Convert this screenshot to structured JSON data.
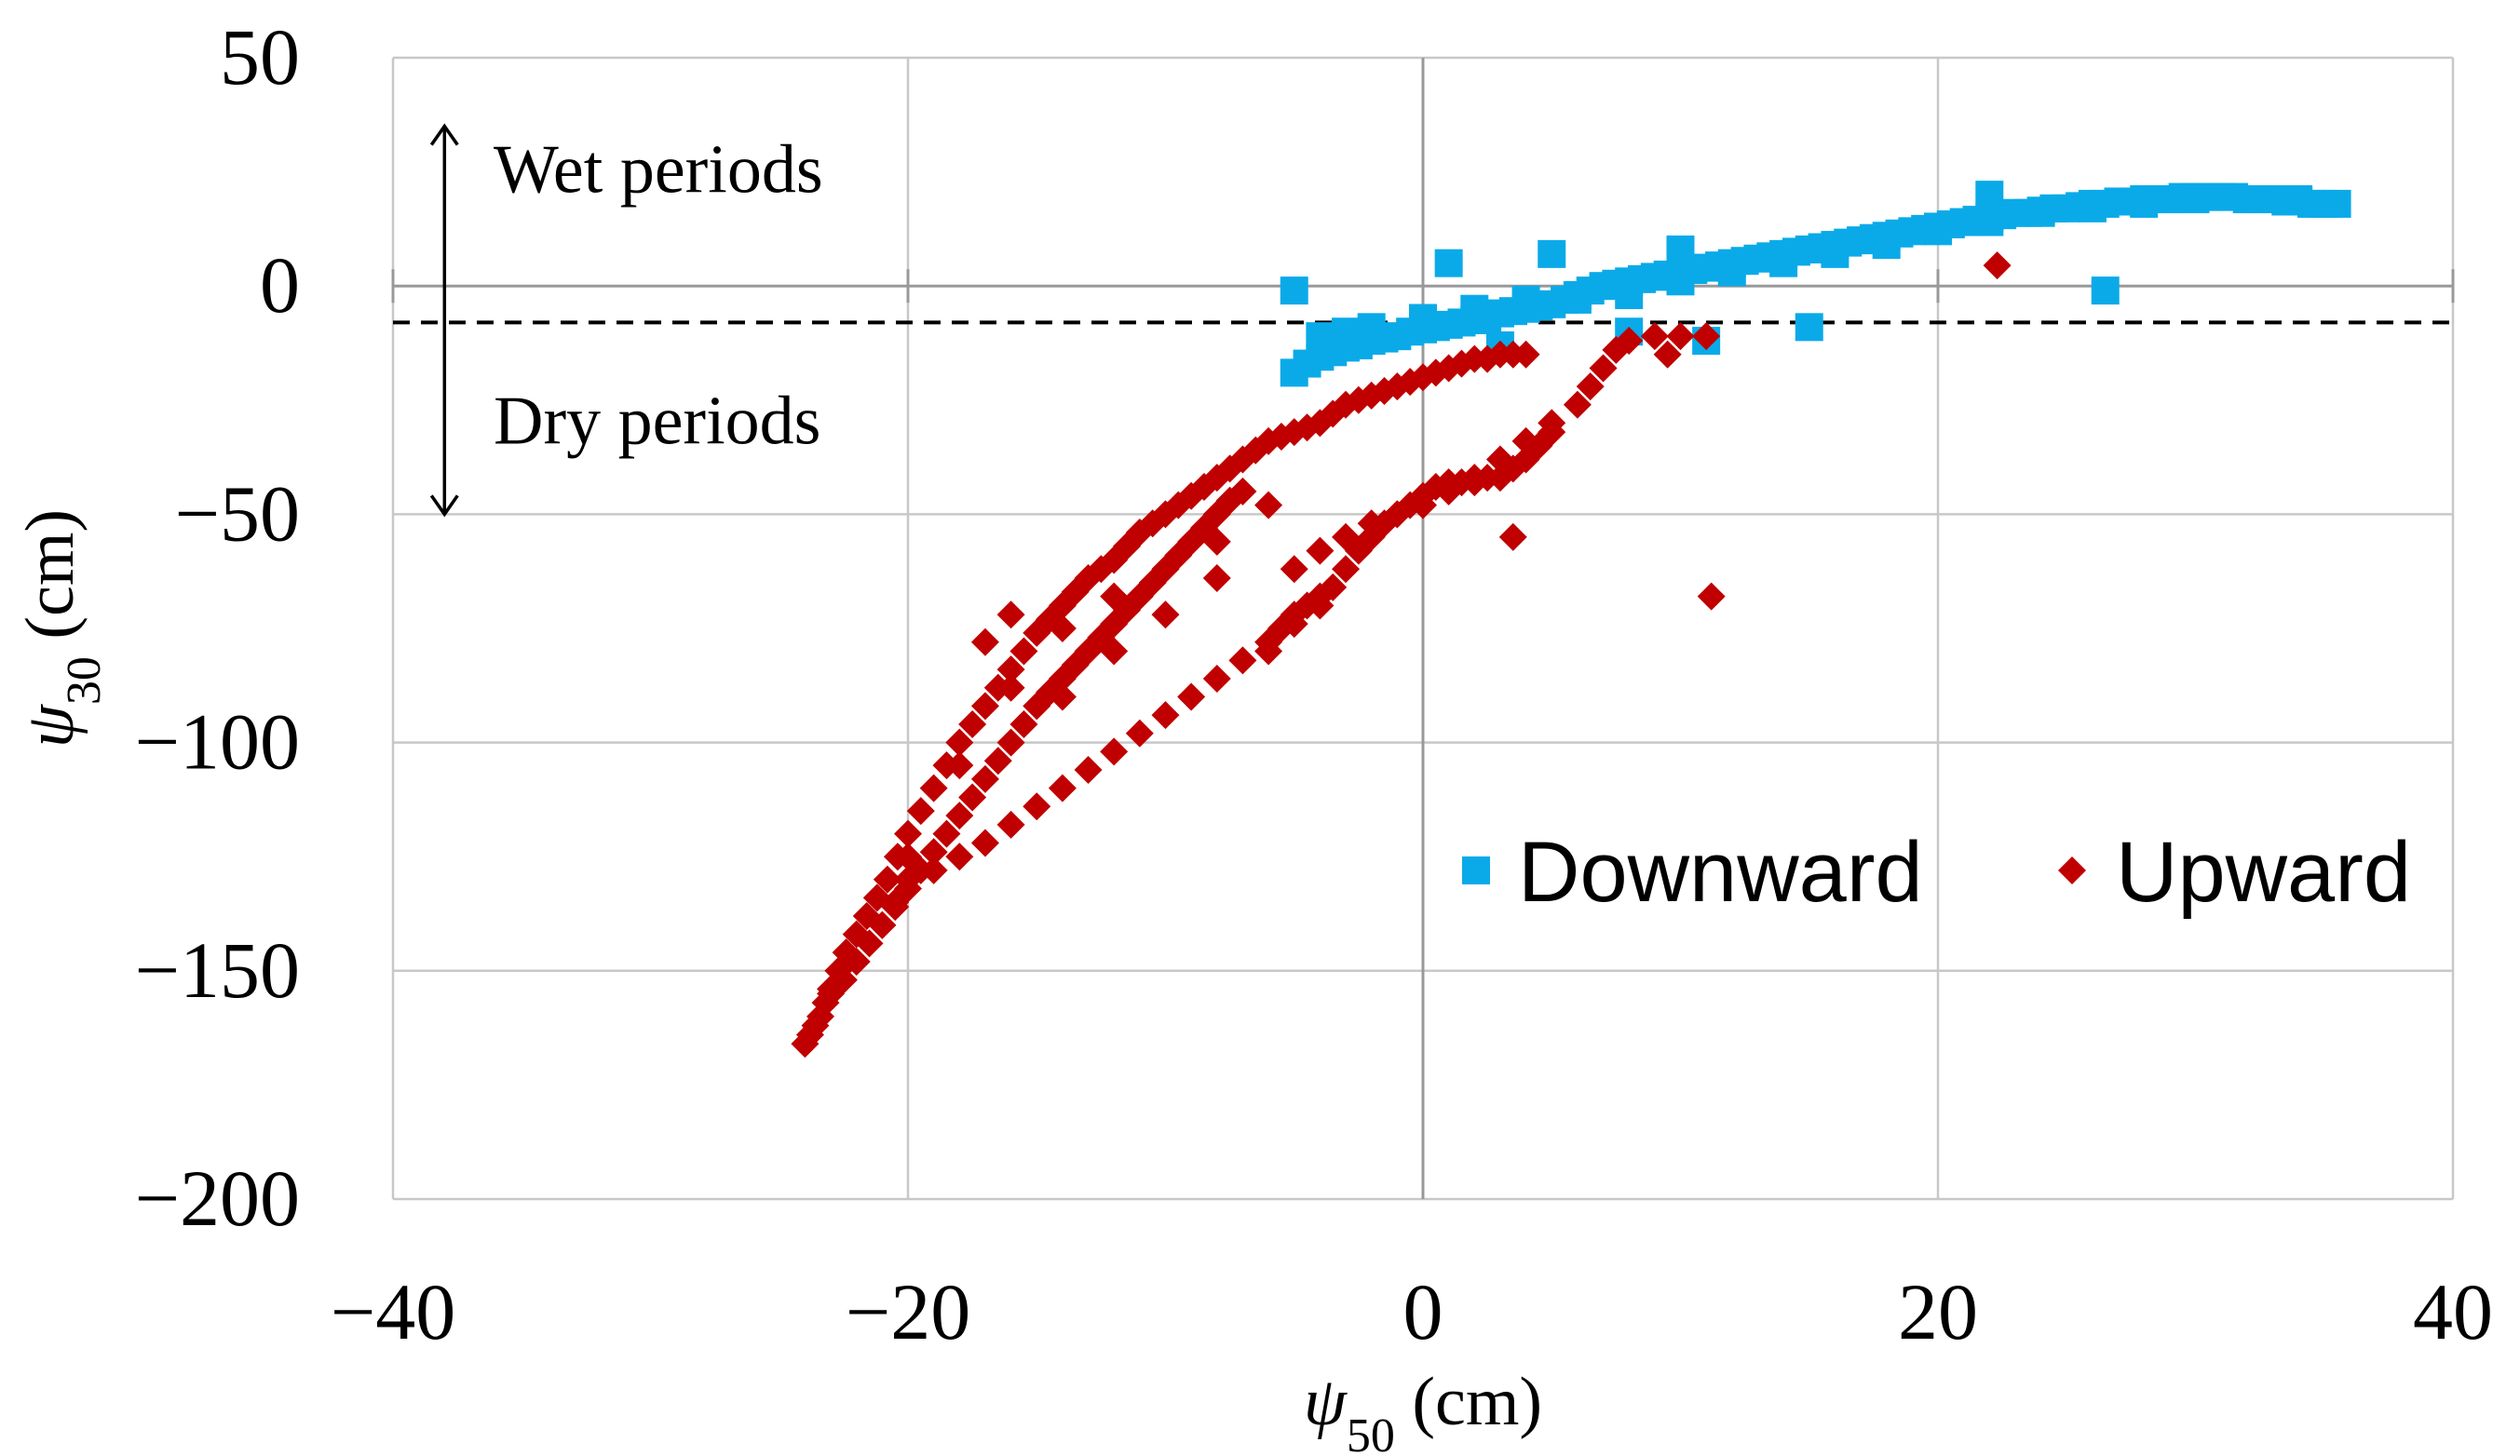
{
  "chart_data": {
    "type": "scatter",
    "xlabel": "ψ50 (cm)",
    "xlabel_parts": {
      "symbol": "ψ",
      "sub": "50",
      "unit": " (cm)"
    },
    "ylabel": "ψ30 (cm)",
    "ylabel_parts": {
      "symbol": "ψ",
      "sub": "30",
      "unit": " (cm)"
    },
    "xlim": [
      -40,
      40
    ],
    "ylim": [
      -200,
      50
    ],
    "x_ticks": [
      -40,
      -20,
      0,
      20,
      40
    ],
    "x_tick_labels": [
      "−40",
      "−20",
      "0",
      "20",
      "40"
    ],
    "y_ticks": [
      50,
      0,
      -50,
      -100,
      -150,
      -200
    ],
    "y_tick_labels": [
      "50",
      "0",
      "−50",
      "−100",
      "−150",
      "−200"
    ],
    "grid": true,
    "legend_position": "center-right",
    "threshold_line": {
      "y": -8,
      "style": "dashed"
    },
    "annotations": {
      "wet": "Wet periods",
      "dry": "Dry periods",
      "arrow_y_range": [
        35,
        -50
      ],
      "arrow_x": -38
    },
    "colors": {
      "downward": "#0aaae8",
      "upward": "#c00000"
    },
    "series": [
      {
        "name": "Downward",
        "marker": "square",
        "x": [
          -5,
          -4.5,
          -4,
          -3.5,
          -3,
          -2.5,
          -2,
          -1.5,
          -1,
          -0.5,
          0,
          0.5,
          1,
          1.5,
          2,
          2.5,
          3,
          3.5,
          4,
          4.5,
          5,
          5.5,
          6,
          6.5,
          7,
          7.5,
          8,
          8.5,
          9,
          9.5,
          10,
          10.5,
          11,
          11.5,
          12,
          12.5,
          13,
          13.5,
          14,
          14.5,
          15,
          15.5,
          16,
          16.5,
          17,
          17.5,
          18,
          18.5,
          19,
          19.5,
          20,
          20.5,
          21,
          21.5,
          22,
          22.5,
          23,
          23.5,
          24,
          24.5,
          25,
          25.5,
          26,
          26.5,
          27,
          27.5,
          28,
          28.5,
          29,
          29.5,
          30,
          30.5,
          31,
          31.5,
          32,
          32.5,
          33,
          33.5,
          34,
          34.5,
          35,
          35.5,
          -4,
          -3,
          -2,
          0,
          2,
          4,
          6,
          8,
          10,
          12,
          14,
          16,
          18,
          20,
          22,
          24,
          26,
          28,
          30,
          32,
          34,
          -5,
          1,
          5,
          10,
          22,
          26.5,
          11,
          15,
          8,
          3
        ],
        "y": [
          -19,
          -17,
          -15.5,
          -14.5,
          -13.5,
          -13,
          -12,
          -11.5,
          -11,
          -10,
          -9.5,
          -9,
          -8.5,
          -8,
          -7.5,
          -7,
          -6,
          -5.5,
          -5,
          -4.5,
          -4,
          -3,
          -2,
          -1,
          0,
          0.5,
          1,
          1.5,
          2,
          2.5,
          3,
          3.5,
          4,
          4.5,
          5,
          5.5,
          6,
          6.5,
          7,
          7.5,
          8,
          8.5,
          9,
          9.5,
          10,
          10.5,
          11,
          11.5,
          12,
          12.5,
          13,
          13.5,
          14,
          14.5,
          15,
          15.5,
          16,
          16,
          16.5,
          17,
          17,
          17.5,
          18,
          18,
          18.5,
          18.5,
          19,
          19,
          19,
          19.5,
          19.5,
          19.5,
          19.5,
          19.5,
          19,
          19,
          19,
          18.5,
          18.5,
          18,
          18,
          18,
          -11,
          -10,
          -9,
          -7,
          -5,
          -3,
          -3,
          -2,
          1,
          3,
          5,
          7,
          9,
          12,
          14,
          16,
          17,
          18,
          19,
          19,
          19,
          -1,
          5,
          7,
          8,
          20,
          -1,
          -12,
          -9,
          -10,
          -13
        ]
      },
      {
        "name": "Upward",
        "marker": "diamond",
        "x": [
          -24,
          -23.8,
          -23.6,
          -23.4,
          -23.2,
          -23,
          -22.7,
          -22.4,
          -22,
          -21.6,
          -21.2,
          -20.8,
          -20.4,
          -20,
          -19.5,
          -19,
          -18.5,
          -18,
          -17.5,
          -17,
          -16.5,
          -16,
          -15.5,
          -15,
          -14.5,
          -14,
          -13.5,
          -13,
          -12.5,
          -12,
          -11.5,
          -11,
          -10.5,
          -10,
          -9.5,
          -9,
          -8.5,
          -8,
          -7.5,
          -7,
          -6.5,
          -6,
          -5.5,
          -5,
          -4.5,
          -4,
          -3.5,
          -3,
          -2.5,
          -2,
          -1.5,
          -1,
          -0.5,
          0,
          0.5,
          1,
          1.5,
          2,
          2.5,
          3,
          3.5,
          4,
          -23,
          -22.5,
          -22,
          -21.5,
          -21,
          -20.5,
          -20,
          -19.5,
          -19,
          -18.5,
          -18,
          -17.5,
          -17,
          -16.5,
          -16,
          -15.5,
          -15,
          -14.5,
          -14,
          -13.5,
          -13,
          -12.5,
          -12,
          -11.5,
          -11,
          -10.5,
          -10,
          -9.5,
          -9,
          -8.5,
          -8,
          -7.5,
          -7,
          -21,
          -20.5,
          -20,
          -19,
          -18,
          -17,
          -16,
          -15,
          -14,
          -13,
          -12,
          -11,
          -10,
          -9,
          -8,
          -7,
          -6,
          -5,
          -4,
          -6,
          -5.5,
          -5,
          -4.5,
          -4,
          -3.5,
          -3,
          -2.5,
          -2,
          -1.5,
          -1,
          -0.5,
          0,
          0.5,
          1,
          1.5,
          2,
          2.5,
          3,
          3.5,
          4,
          4.5,
          5,
          -5,
          -4,
          -3,
          -2,
          -1,
          0,
          1,
          2,
          3,
          4,
          5,
          6,
          6.5,
          7,
          7.5,
          8,
          9,
          10,
          11,
          -22,
          -20,
          -18,
          -16,
          -14,
          -12,
          -10,
          -8,
          -6,
          -14,
          -12,
          -10,
          -8,
          -16,
          -17,
          22.3,
          11.2,
          3.5,
          9.5
        ],
        "y": [
          -166,
          -164,
          -162,
          -160,
          -157,
          -154,
          -150,
          -146,
          -142,
          -138,
          -134,
          -130,
          -125,
          -120,
          -115,
          -110,
          -105,
          -100,
          -96,
          -92,
          -88,
          -84,
          -80,
          -76,
          -73,
          -70,
          -67,
          -64,
          -62,
          -60,
          -57,
          -54,
          -52,
          -50,
          -48,
          -46,
          -44,
          -42,
          -40,
          -38,
          -36,
          -34,
          -33,
          -32,
          -31,
          -30,
          -28,
          -26,
          -25,
          -24,
          -23,
          -22,
          -21,
          -20,
          -19,
          -18,
          -17,
          -16,
          -16,
          -15,
          -15,
          -15,
          -155,
          -152,
          -148,
          -144,
          -140,
          -136,
          -132,
          -128,
          -124,
          -120,
          -116,
          -112,
          -108,
          -104,
          -100,
          -96,
          -92,
          -89,
          -86,
          -83,
          -80,
          -77,
          -74,
          -71,
          -68,
          -65,
          -62,
          -59,
          -56,
          -53,
          -50,
          -47,
          -45,
          -140,
          -135,
          -130,
          -128,
          -125,
          -122,
          -118,
          -114,
          -110,
          -106,
          -102,
          -98,
          -94,
          -90,
          -86,
          -82,
          -78,
          -74,
          -70,
          -80,
          -75,
          -72,
          -70,
          -68,
          -66,
          -62,
          -58,
          -55,
          -52,
          -50,
          -48,
          -46,
          -44,
          -43,
          -43,
          -43,
          -42,
          -42,
          -40,
          -38,
          -35,
          -32,
          -62,
          -58,
          -55,
          -52,
          -50,
          -48,
          -45,
          -42,
          -38,
          -34,
          -30,
          -26,
          -22,
          -18,
          -14,
          -12,
          -11,
          -11,
          -11,
          -148,
          -125,
          -105,
          -88,
          -75,
          -68,
          -62,
          -56,
          -48,
          -90,
          -80,
          -72,
          -64,
          -72,
          -78,
          4.5,
          -68,
          -55,
          -15
        ]
      }
    ]
  }
}
